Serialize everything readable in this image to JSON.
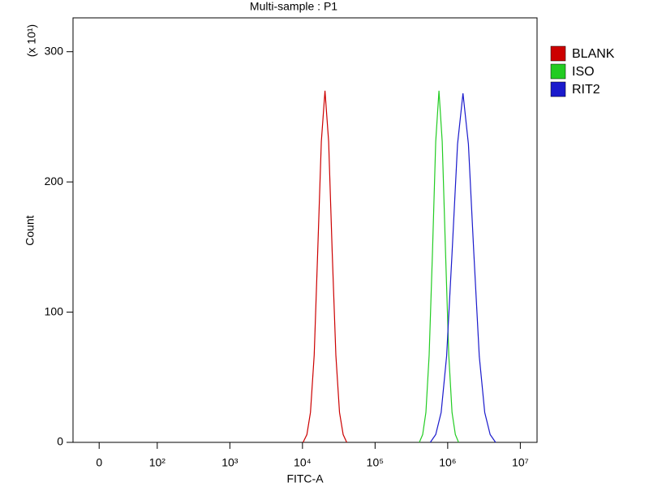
{
  "chart_data": {
    "type": "line",
    "title": "Multi-sample : P1",
    "x_label": "FITC-A",
    "y_label": "Count",
    "y_multiplier": "(x 10¹)",
    "x_scale": "biexponential",
    "xlim": [
      -45,
      17000000
    ],
    "ylim": [
      0,
      326
    ],
    "xticks": [
      0,
      {
        "value": 100,
        "label": "10²"
      },
      {
        "value": 1000,
        "label": "10³"
      },
      {
        "value": 10000,
        "label": "10⁴"
      },
      {
        "value": 100000,
        "label": "10⁵"
      },
      {
        "value": 1000000,
        "label": "10⁶"
      },
      {
        "value": 10000000,
        "label": "10⁷"
      }
    ],
    "yticks": [
      0,
      100,
      200,
      300
    ],
    "legend": "right",
    "series": [
      {
        "name": "BLANK",
        "color": "#cc0000",
        "x": [
          10200,
          11500,
          12900,
          14500,
          16200,
          18200,
          20400,
          22900,
          25700,
          28800,
          32400,
          36300,
          40700
        ],
        "values": [
          0,
          6,
          23,
          67,
          146,
          231,
          270,
          231,
          146,
          67,
          23,
          6,
          0
        ]
      },
      {
        "name": "ISO",
        "color": "#22cc22",
        "x": [
          407000,
          452000,
          501000,
          556000,
          617000,
          684000,
          759000,
          841000,
          933000,
          1035000,
          1148000,
          1274000,
          1413000
        ],
        "values": [
          0,
          6,
          23,
          67,
          146,
          231,
          270,
          231,
          146,
          67,
          23,
          6,
          0
        ]
      },
      {
        "name": "RIT2",
        "color": "#1a1acc",
        "x": [
          575000,
          684000,
          813000,
          966000,
          1148000,
          1365000,
          1622000,
          1928000,
          2291000,
          2723000,
          3236000,
          3846000,
          4571000
        ],
        "values": [
          0,
          6,
          23,
          66,
          145,
          229,
          268,
          229,
          145,
          66,
          23,
          6,
          0
        ]
      }
    ]
  }
}
